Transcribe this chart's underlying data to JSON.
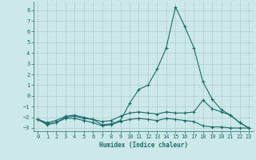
{
  "xlabel": "Humidex (Indice chaleur)",
  "bg_color": "#cce8e8",
  "grid_color": "#b0cccc",
  "line_color": "#1a6b6b",
  "xlim": [
    -0.5,
    23.5
  ],
  "ylim": [
    -3.3,
    8.8
  ],
  "x_ticks": [
    0,
    1,
    2,
    3,
    4,
    5,
    6,
    7,
    8,
    9,
    10,
    11,
    12,
    13,
    14,
    15,
    16,
    17,
    18,
    19,
    20,
    21,
    22,
    23
  ],
  "y_ticks": [
    -3,
    -2,
    -1,
    0,
    1,
    2,
    3,
    4,
    5,
    6,
    7,
    8
  ],
  "line1_x": [
    0,
    1,
    2,
    3,
    4,
    5,
    6,
    7,
    8,
    9,
    10,
    11,
    12,
    13,
    14,
    15,
    16,
    17,
    18,
    19,
    20,
    21,
    22,
    23
  ],
  "line1_y": [
    -2.2,
    -2.7,
    -2.5,
    -2.1,
    -2.1,
    -2.3,
    -2.5,
    -2.8,
    -2.7,
    -2.4,
    -2.2,
    -2.1,
    -2.2,
    -2.3,
    -2.1,
    -2.2,
    -2.3,
    -2.4,
    -2.8,
    -2.9,
    -2.9,
    -3.0,
    -3.0,
    -3.0
  ],
  "line2_x": [
    0,
    1,
    2,
    3,
    4,
    5,
    6,
    7,
    8,
    9,
    10,
    11,
    12,
    13,
    14,
    15,
    16,
    17,
    18,
    19,
    20,
    21,
    22,
    23
  ],
  "line2_y": [
    -2.2,
    -2.5,
    -2.3,
    -1.9,
    -1.8,
    -2.0,
    -2.2,
    -2.4,
    -2.3,
    -1.9,
    -1.6,
    -1.5,
    -1.6,
    -1.7,
    -1.5,
    -1.6,
    -1.6,
    -1.5,
    -0.4,
    -1.2,
    -1.5,
    -1.8,
    -2.5,
    -3.0
  ],
  "line3_x": [
    0,
    1,
    2,
    3,
    4,
    5,
    6,
    7,
    8,
    9,
    10,
    11,
    12,
    13,
    14,
    15,
    16,
    17,
    18,
    19,
    20,
    21,
    22,
    23
  ],
  "line3_y": [
    -2.2,
    -2.6,
    -2.5,
    -2.0,
    -1.9,
    -2.1,
    -2.2,
    -2.7,
    -2.6,
    -2.3,
    -0.7,
    0.6,
    1.0,
    2.5,
    4.5,
    8.3,
    6.5,
    4.5,
    1.3,
    -0.3,
    -1.3,
    -1.8,
    -2.5,
    -3.0
  ]
}
